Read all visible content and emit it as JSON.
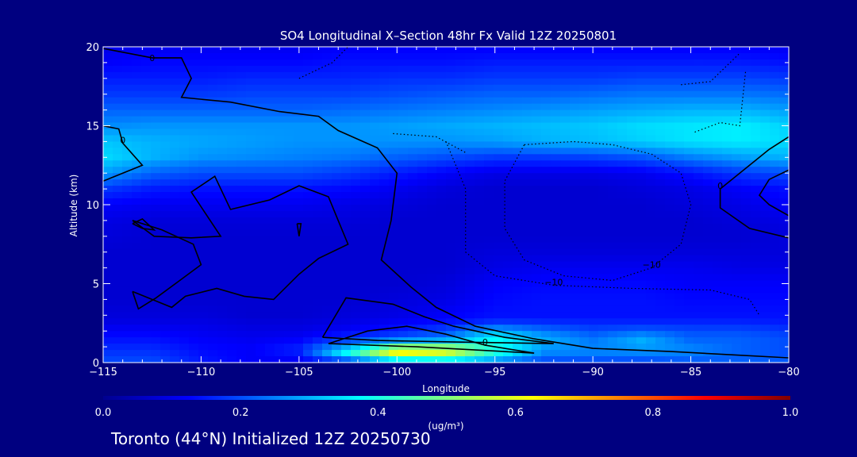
{
  "chart_data": {
    "type": "heatmap",
    "title": "SO4 Longitudinal X–Section 48hr  Fx Valid 12Z 20250801",
    "xlabel": "Longitude",
    "ylabel": "Altitude (km)",
    "xlim": [
      -115,
      -80
    ],
    "ylim": [
      0,
      20
    ],
    "x_ticks": [
      -115,
      -110,
      -105,
      -100,
      -95,
      -90,
      -85,
      -80
    ],
    "x_tick_labels": [
      "−115",
      "−110",
      "−105",
      "−100",
      "−95",
      "−90",
      "−85",
      "−80"
    ],
    "y_ticks": [
      0,
      5,
      10,
      15,
      20
    ],
    "y_tick_labels": [
      "0",
      "5",
      "10",
      "15",
      "20"
    ],
    "colorbar": {
      "min": 0.0,
      "max": 1.0,
      "tick_labels": [
        "0.0",
        "0.2",
        "0.4",
        "0.6",
        "0.8",
        "1.0"
      ],
      "unit": "(ug/m³)",
      "colormap": "jet"
    },
    "contour_labels": [
      "0",
      "0",
      "0",
      "−10",
      "−10",
      "0"
    ],
    "field": {
      "lons": [
        -115,
        -112.5,
        -110,
        -107.5,
        -105,
        -102.5,
        -100,
        -97.5,
        -95,
        -92.5,
        -90,
        -87.5,
        -85,
        -82.5,
        -80
      ],
      "alts": [
        0,
        0.5,
        1,
        1.5,
        2,
        2.5,
        3,
        4,
        5,
        6,
        7,
        8,
        9,
        10,
        11,
        12,
        13,
        14,
        15,
        16,
        17,
        18,
        19,
        20
      ],
      "values": [
        [
          0.2,
          0.2,
          0.15,
          0.12,
          0.1,
          0.12,
          0.2,
          0.25,
          0.22,
          0.18,
          0.18,
          0.18,
          0.2,
          0.22,
          0.22
        ],
        [
          0.18,
          0.18,
          0.14,
          0.12,
          0.15,
          0.4,
          0.65,
          0.6,
          0.4,
          0.25,
          0.25,
          0.25,
          0.25,
          0.22,
          0.2
        ],
        [
          0.16,
          0.16,
          0.13,
          0.12,
          0.15,
          0.3,
          0.5,
          0.5,
          0.4,
          0.28,
          0.25,
          0.28,
          0.25,
          0.22,
          0.2
        ],
        [
          0.14,
          0.14,
          0.12,
          0.11,
          0.12,
          0.18,
          0.22,
          0.25,
          0.38,
          0.3,
          0.24,
          0.3,
          0.22,
          0.22,
          0.2
        ],
        [
          0.12,
          0.12,
          0.11,
          0.1,
          0.1,
          0.12,
          0.15,
          0.2,
          0.3,
          0.24,
          0.2,
          0.22,
          0.2,
          0.2,
          0.18
        ],
        [
          0.1,
          0.1,
          0.1,
          0.09,
          0.09,
          0.1,
          0.12,
          0.14,
          0.18,
          0.17,
          0.16,
          0.16,
          0.16,
          0.16,
          0.15
        ],
        [
          0.09,
          0.09,
          0.09,
          0.08,
          0.08,
          0.09,
          0.1,
          0.12,
          0.14,
          0.14,
          0.14,
          0.14,
          0.14,
          0.14,
          0.14
        ],
        [
          0.08,
          0.08,
          0.08,
          0.08,
          0.08,
          0.08,
          0.09,
          0.1,
          0.13,
          0.14,
          0.14,
          0.14,
          0.13,
          0.13,
          0.13
        ],
        [
          0.08,
          0.08,
          0.08,
          0.08,
          0.08,
          0.08,
          0.08,
          0.09,
          0.12,
          0.13,
          0.13,
          0.13,
          0.12,
          0.12,
          0.12
        ],
        [
          0.08,
          0.08,
          0.08,
          0.08,
          0.08,
          0.08,
          0.08,
          0.08,
          0.1,
          0.11,
          0.11,
          0.11,
          0.11,
          0.1,
          0.1
        ],
        [
          0.08,
          0.08,
          0.08,
          0.08,
          0.08,
          0.08,
          0.08,
          0.08,
          0.09,
          0.09,
          0.09,
          0.09,
          0.09,
          0.09,
          0.09
        ],
        [
          0.09,
          0.08,
          0.08,
          0.08,
          0.08,
          0.08,
          0.08,
          0.08,
          0.08,
          0.08,
          0.08,
          0.08,
          0.08,
          0.08,
          0.09
        ],
        [
          0.1,
          0.09,
          0.09,
          0.09,
          0.09,
          0.09,
          0.08,
          0.08,
          0.08,
          0.08,
          0.08,
          0.08,
          0.08,
          0.09,
          0.1
        ],
        [
          0.12,
          0.11,
          0.11,
          0.11,
          0.11,
          0.1,
          0.09,
          0.08,
          0.08,
          0.08,
          0.08,
          0.08,
          0.09,
          0.1,
          0.12
        ],
        [
          0.18,
          0.15,
          0.14,
          0.14,
          0.14,
          0.13,
          0.11,
          0.09,
          0.08,
          0.08,
          0.08,
          0.09,
          0.1,
          0.12,
          0.14
        ],
        [
          0.28,
          0.22,
          0.2,
          0.2,
          0.2,
          0.18,
          0.15,
          0.12,
          0.1,
          0.1,
          0.1,
          0.11,
          0.14,
          0.18,
          0.2
        ],
        [
          0.34,
          0.3,
          0.27,
          0.26,
          0.25,
          0.24,
          0.22,
          0.2,
          0.18,
          0.18,
          0.19,
          0.21,
          0.25,
          0.28,
          0.3
        ],
        [
          0.32,
          0.3,
          0.29,
          0.28,
          0.27,
          0.27,
          0.27,
          0.27,
          0.28,
          0.3,
          0.31,
          0.33,
          0.35,
          0.36,
          0.34
        ],
        [
          0.26,
          0.27,
          0.27,
          0.27,
          0.27,
          0.27,
          0.28,
          0.29,
          0.3,
          0.31,
          0.32,
          0.34,
          0.35,
          0.36,
          0.33
        ],
        [
          0.22,
          0.22,
          0.22,
          0.22,
          0.22,
          0.23,
          0.24,
          0.25,
          0.26,
          0.27,
          0.28,
          0.29,
          0.3,
          0.3,
          0.28
        ],
        [
          0.18,
          0.18,
          0.18,
          0.19,
          0.19,
          0.19,
          0.2,
          0.21,
          0.22,
          0.22,
          0.23,
          0.24,
          0.24,
          0.24,
          0.23
        ],
        [
          0.15,
          0.15,
          0.15,
          0.16,
          0.16,
          0.16,
          0.17,
          0.17,
          0.18,
          0.18,
          0.18,
          0.19,
          0.19,
          0.19,
          0.18
        ],
        [
          0.12,
          0.13,
          0.13,
          0.13,
          0.13,
          0.14,
          0.14,
          0.14,
          0.15,
          0.15,
          0.15,
          0.15,
          0.15,
          0.15,
          0.14
        ],
        [
          0.1,
          0.11,
          0.11,
          0.11,
          0.11,
          0.12,
          0.12,
          0.12,
          0.12,
          0.12,
          0.12,
          0.12,
          0.12,
          0.12,
          0.11
        ]
      ]
    },
    "contours": [
      {
        "style": "solid",
        "label": "0",
        "points": [
          [
            -115,
            19.9
          ],
          [
            -112.5,
            19.3
          ],
          [
            -111,
            19.3
          ],
          [
            -110.5,
            18.0
          ],
          [
            -111,
            16.8
          ],
          [
            -108.5,
            16.5
          ],
          [
            -106,
            15.9
          ],
          [
            -104,
            15.6
          ],
          [
            -103,
            14.7
          ],
          [
            -101,
            13.6
          ],
          [
            -100,
            12.0
          ],
          [
            -100.3,
            9.0
          ],
          [
            -100.8,
            6.5
          ],
          [
            -99.3,
            4.8
          ],
          [
            -98,
            3.5
          ],
          [
            -96,
            2.3
          ],
          [
            -93,
            1.5
          ],
          [
            -90,
            0.9
          ],
          [
            -86,
            0.7
          ],
          [
            -83,
            0.5
          ],
          [
            -80,
            0.3
          ]
        ]
      },
      {
        "style": "solid",
        "label": "0",
        "points": [
          [
            -115,
            15.0
          ],
          [
            -114.2,
            14.8
          ],
          [
            -114,
            13.9
          ],
          [
            -113,
            12.5
          ],
          [
            -115,
            11.5
          ]
        ]
      },
      {
        "style": "solid",
        "label": "",
        "points": [
          [
            -113.5,
            9.0
          ],
          [
            -112.0,
            8.4
          ],
          [
            -110.4,
            7.5
          ],
          [
            -110.0,
            6.2
          ],
          [
            -111.2,
            5.1
          ],
          [
            -112.3,
            4.1
          ],
          [
            -113.2,
            3.4
          ],
          [
            -113.5,
            4.5
          ]
        ]
      },
      {
        "style": "solid",
        "label": "",
        "points": [
          [
            -113.5,
            4.5
          ],
          [
            -111.5,
            3.5
          ],
          [
            -110.8,
            4.2
          ],
          [
            -109.2,
            4.7
          ],
          [
            -107.8,
            4.2
          ],
          [
            -106.3,
            4.0
          ],
          [
            -105,
            5.6
          ],
          [
            -104,
            6.6
          ],
          [
            -102.5,
            7.5
          ],
          [
            -103,
            9.0
          ],
          [
            -103.5,
            10.5
          ],
          [
            -105,
            11.2
          ],
          [
            -106.5,
            10.3
          ],
          [
            -108.5,
            9.7
          ],
          [
            -109.3,
            11.8
          ],
          [
            -110.5,
            10.8
          ],
          [
            -109,
            8.0
          ],
          [
            -110.5,
            7.9
          ],
          [
            -112.4,
            8.0
          ],
          [
            -113.5,
            9.0
          ]
        ]
      },
      {
        "style": "solid",
        "label": "",
        "points": [
          [
            -113.5,
            8.8
          ],
          [
            -113.0,
            9.1
          ],
          [
            -112.4,
            8.4
          ],
          [
            -113.0,
            8.5
          ],
          [
            -113.5,
            8.8
          ]
        ]
      },
      {
        "style": "solid",
        "label": "",
        "points": [
          [
            -105.1,
            8.8
          ],
          [
            -105.0,
            8.0
          ],
          [
            -104.9,
            8.8
          ],
          [
            -105.1,
            8.8
          ]
        ]
      },
      {
        "style": "solid",
        "label": "0",
        "points": [
          [
            -103.5,
            1.2
          ],
          [
            -101.5,
            2.0
          ],
          [
            -99.5,
            2.3
          ],
          [
            -97.5,
            1.8
          ],
          [
            -95.5,
            1.1
          ],
          [
            -93,
            0.6
          ],
          [
            -96,
            0.8
          ],
          [
            -99,
            1.0
          ],
          [
            -103.5,
            1.2
          ]
        ]
      },
      {
        "style": "solid",
        "label": "",
        "points": [
          [
            -103.8,
            1.6
          ],
          [
            -102.6,
            4.1
          ],
          [
            -100.2,
            3.7
          ],
          [
            -98.6,
            2.9
          ],
          [
            -97.1,
            2.3
          ],
          [
            -94.5,
            1.6
          ],
          [
            -92,
            1.2
          ],
          [
            -97,
            1.3
          ],
          [
            -101,
            1.4
          ],
          [
            -103.8,
            1.6
          ]
        ]
      },
      {
        "style": "solid",
        "label": "0",
        "points": [
          [
            -80,
            14.3
          ],
          [
            -81,
            13.5
          ],
          [
            -82,
            12.5
          ],
          [
            -83.5,
            11.0
          ],
          [
            -83.5,
            9.8
          ],
          [
            -82,
            8.5
          ],
          [
            -80,
            7.9
          ]
        ]
      },
      {
        "style": "solid",
        "label": "",
        "points": [
          [
            -80,
            12.2
          ],
          [
            -81,
            11.6
          ],
          [
            -81.5,
            10.6
          ],
          [
            -81,
            10.0
          ],
          [
            -80,
            9.3
          ]
        ]
      },
      {
        "style": "dotted",
        "label": "−10",
        "points": [
          [
            -93.5,
            13.8
          ],
          [
            -91,
            14.0
          ],
          [
            -89,
            13.8
          ],
          [
            -87,
            13.2
          ],
          [
            -85.5,
            12.0
          ],
          [
            -85,
            10.0
          ],
          [
            -85.5,
            7.5
          ],
          [
            -87,
            6.0
          ],
          [
            -89,
            5.2
          ],
          [
            -91.5,
            5.5
          ],
          [
            -93.5,
            6.5
          ],
          [
            -94.5,
            8.5
          ],
          [
            -94.5,
            11.5
          ],
          [
            -93.5,
            13.8
          ]
        ]
      },
      {
        "style": "dotted",
        "label": "−10",
        "points": [
          [
            -97.5,
            14.0
          ],
          [
            -96.5,
            11.0
          ],
          [
            -96.5,
            7.0
          ],
          [
            -95,
            5.5
          ],
          [
            -92,
            4.9
          ],
          [
            -88,
            4.7
          ],
          [
            -84,
            4.6
          ],
          [
            -82,
            4.0
          ],
          [
            -81.5,
            3.0
          ]
        ]
      },
      {
        "style": "dotted",
        "label": "",
        "points": [
          [
            -100.2,
            14.5
          ],
          [
            -98,
            14.3
          ],
          [
            -96.5,
            13.3
          ]
        ]
      },
      {
        "style": "dotted",
        "label": "",
        "points": [
          [
            -105,
            18.0
          ],
          [
            -103.3,
            19.0
          ],
          [
            -102.5,
            20.0
          ]
        ]
      },
      {
        "style": "dotted",
        "label": "",
        "points": [
          [
            -85.5,
            17.6
          ],
          [
            -84.0,
            17.8
          ],
          [
            -82.5,
            19.6
          ]
        ]
      },
      {
        "style": "dotted",
        "label": "",
        "points": [
          [
            -84.8,
            14.6
          ],
          [
            -83.5,
            15.2
          ],
          [
            -82.5,
            15.0
          ],
          [
            -82.2,
            18.5
          ]
        ]
      }
    ]
  },
  "figure": {
    "title": "SO4 Longitudinal X–Section 48hr  Fx Valid 12Z 20250801",
    "xlabel": "Longitude",
    "ylabel": "Altitude (km)",
    "colorbar_unit": "(ug/m³)",
    "footer": "Toronto (44°N) Initialized 12Z 20250730"
  },
  "colors": {
    "background": "#000080",
    "text": "#ffffff",
    "contour": "#000000"
  }
}
